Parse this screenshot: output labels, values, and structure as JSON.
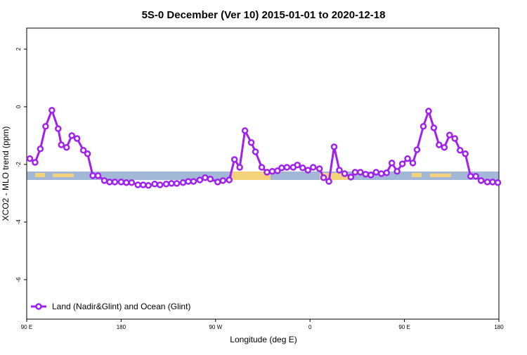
{
  "chart_data": {
    "type": "line",
    "title": "5S-0 December (Ver 10)   2015-01-01 to 2020-12-18",
    "x_label": "Longitude (deg E)",
    "y_label": "XCO2 - MLO trend (ppm)",
    "xlim": [
      90,
      540
    ],
    "xticks": [
      {
        "value": 90,
        "label": "90 E"
      },
      {
        "value": 180,
        "label": "180"
      },
      {
        "value": 270,
        "label": "90 W"
      },
      {
        "value": 360,
        "label": "0"
      },
      {
        "value": 450,
        "label": "90 E"
      },
      {
        "value": 540,
        "label": "180"
      }
    ],
    "ylim": [
      -7.37,
      2.73
    ],
    "yticks": [
      2,
      0,
      -2,
      -4,
      -6
    ],
    "legend": "bottom-left",
    "x": [
      93,
      98,
      103,
      108,
      114,
      120,
      123,
      128,
      133,
      138,
      144,
      148,
      153,
      158,
      164,
      169,
      174,
      180,
      185,
      190,
      196,
      201,
      206,
      212,
      217,
      223,
      228,
      233,
      239,
      244,
      249,
      255,
      260,
      265,
      272,
      277,
      283,
      288,
      293,
      298,
      304,
      308,
      314,
      319,
      324,
      329,
      333,
      338,
      344,
      348,
      353,
      358,
      363,
      369,
      373,
      378,
      383,
      388,
      393,
      399,
      403,
      408,
      413,
      418,
      423,
      428,
      433,
      438,
      443,
      448,
      453,
      458,
      462,
      468,
      473,
      478,
      483,
      488,
      493,
      498,
      503,
      508,
      513,
      518,
      523,
      529,
      534,
      539
    ],
    "series": [
      {
        "name": "Land (Nadir&Glint) and Ocean (Glint)",
        "color": "#a020f0",
        "values": [
          -1.8,
          -1.93,
          -1.46,
          -0.68,
          -0.12,
          -0.76,
          -1.32,
          -1.41,
          -1.0,
          -1.1,
          -1.51,
          -1.63,
          -2.39,
          -2.39,
          -2.56,
          -2.61,
          -2.61,
          -2.61,
          -2.63,
          -2.63,
          -2.71,
          -2.71,
          -2.73,
          -2.68,
          -2.71,
          -2.68,
          -2.66,
          -2.66,
          -2.63,
          -2.59,
          -2.59,
          -2.54,
          -2.46,
          -2.51,
          -2.61,
          -2.56,
          -2.54,
          -1.83,
          -2.1,
          -0.83,
          -1.24,
          -1.56,
          -2.1,
          -2.27,
          -2.24,
          -2.22,
          -2.12,
          -2.1,
          -2.1,
          -2.02,
          -2.12,
          -2.2,
          -2.1,
          -2.15,
          -2.46,
          -2.59,
          -1.39,
          -2.2,
          -2.32,
          -2.44,
          -2.27,
          -2.27,
          -2.34,
          -2.37,
          -2.27,
          -2.32,
          -2.29,
          -1.95,
          -2.24,
          -1.98,
          -1.8,
          -1.95,
          -1.49,
          -0.68,
          -0.15,
          -0.73,
          -1.32,
          -1.41,
          -0.98,
          -1.1,
          -1.51,
          -1.63,
          -2.41,
          -2.41,
          -2.56,
          -2.61,
          -2.61,
          -2.63
        ]
      }
    ]
  }
}
